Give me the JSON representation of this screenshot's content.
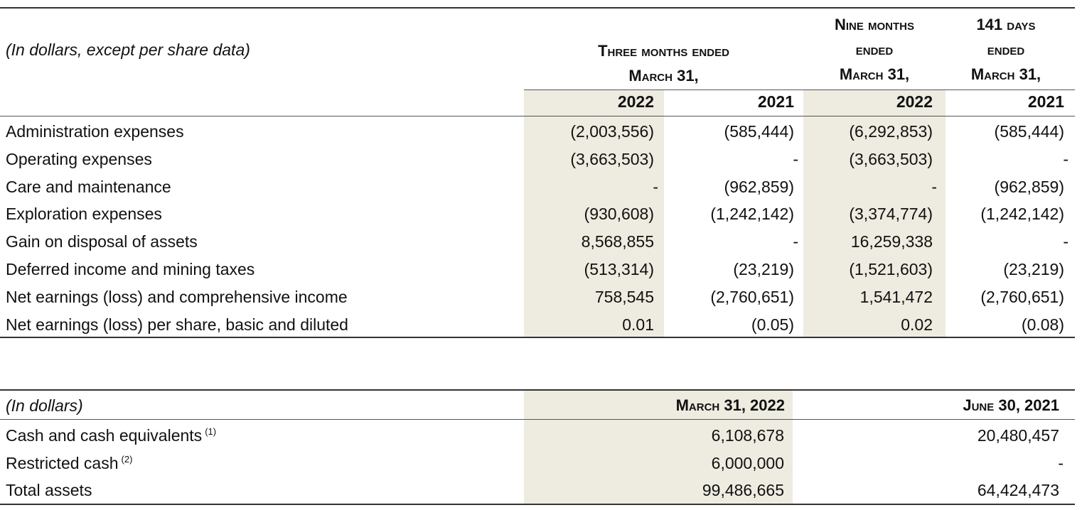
{
  "income_table": {
    "unit_label": "(In dollars, except per share data)",
    "group_headers": [
      {
        "lines": [
          "Three months ended",
          "March 31,"
        ]
      },
      {
        "lines": [
          "Nine months",
          "ended",
          "March 31,"
        ]
      },
      {
        "lines": [
          "141 days",
          "ended",
          "March 31,"
        ]
      }
    ],
    "years": [
      "2022",
      "2021",
      "2022",
      "2021"
    ],
    "rows": [
      {
        "label": "Administration expenses",
        "values": [
          "(2,003,556)",
          "(585,444)",
          "(6,292,853)",
          "(585,444)"
        ]
      },
      {
        "label": "Operating expenses",
        "values": [
          "(3,663,503)",
          "-",
          "(3,663,503)",
          "-"
        ]
      },
      {
        "label": "Care and maintenance",
        "values": [
          "-",
          "(962,859)",
          "-",
          "(962,859)"
        ]
      },
      {
        "label": "Exploration expenses",
        "values": [
          "(930,608)",
          "(1,242,142)",
          "(3,374,774)",
          "(1,242,142)"
        ]
      },
      {
        "label": "Gain on disposal of assets",
        "values": [
          "8,568,855",
          "-",
          "16,259,338",
          "-"
        ]
      },
      {
        "label": "Deferred income and mining taxes",
        "values": [
          "(513,314)",
          "(23,219)",
          "(1,521,603)",
          "(23,219)"
        ]
      },
      {
        "label": "Net earnings (loss) and comprehensive income",
        "values": [
          "758,545",
          "(2,760,651)",
          "1,541,472",
          "(2,760,651)"
        ]
      },
      {
        "label": "Net earnings (loss) per share, basic and diluted",
        "values": [
          "0.01",
          "(0.05)",
          "0.02",
          "(0.08)"
        ]
      }
    ]
  },
  "balance_table": {
    "unit_label": "(In dollars)",
    "headers": [
      "March 31, 2022",
      "June 30, 2021"
    ],
    "rows": [
      {
        "label": "Cash and cash equivalents",
        "note": "(1)",
        "values": [
          "6,108,678",
          "20,480,457"
        ]
      },
      {
        "label": "Restricted cash",
        "note": "(2)",
        "values": [
          "6,000,000",
          "-"
        ]
      },
      {
        "label": "Total assets",
        "note": "",
        "values": [
          "99,486,665",
          "64,424,473"
        ]
      }
    ]
  },
  "colors": {
    "shade": "#eeebe0",
    "rule": "#333333"
  }
}
